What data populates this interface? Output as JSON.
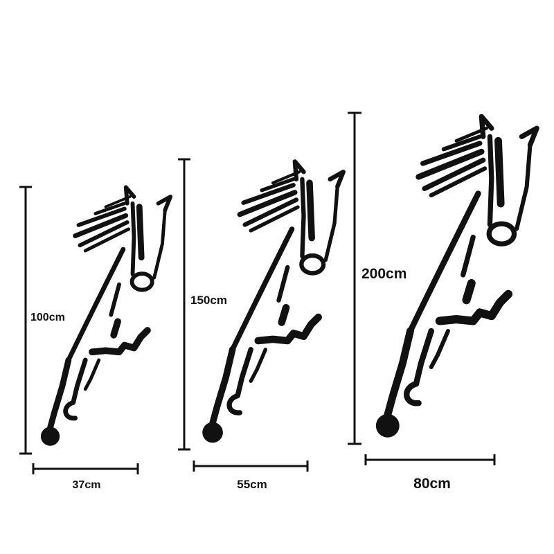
{
  "sizes": [
    {
      "height_label": "100cm",
      "width_label": "37cm"
    },
    {
      "height_label": "150cm",
      "width_label": "55cm"
    },
    {
      "height_label": "200cm",
      "width_label": "80cm"
    }
  ],
  "colors": {
    "ink": "#111111",
    "background": "#ffffff"
  },
  "icon": "running-horse-silhouette"
}
